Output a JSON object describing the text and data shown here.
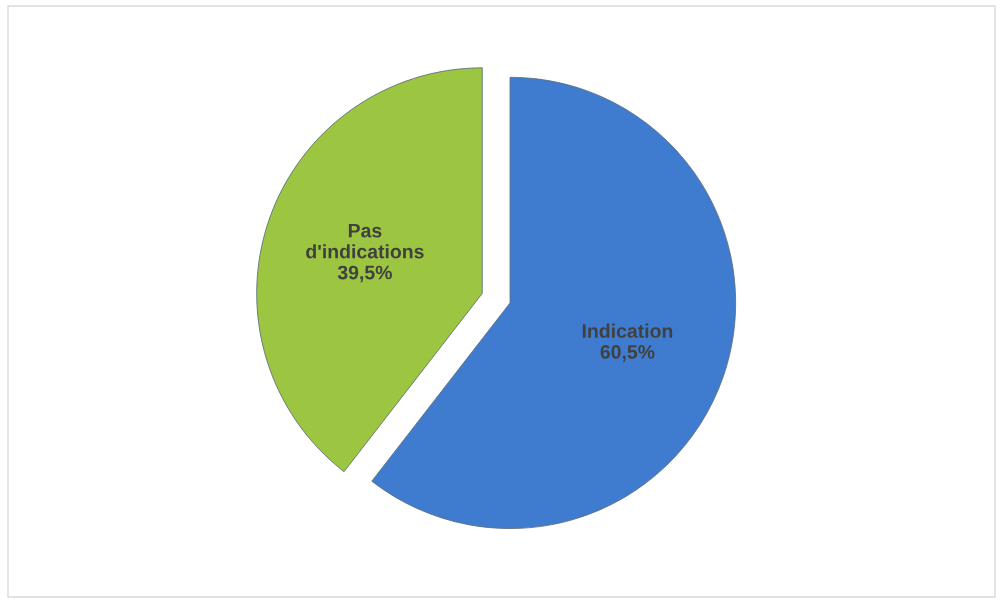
{
  "chart_data": {
    "type": "pie",
    "categories": [
      "Indication",
      "Pas d'indications"
    ],
    "values": [
      60.5,
      39.5
    ],
    "colors": [
      "#3f7ccf",
      "#9cc641"
    ],
    "value_labels": [
      "60,5%",
      "39,5%"
    ]
  }
}
